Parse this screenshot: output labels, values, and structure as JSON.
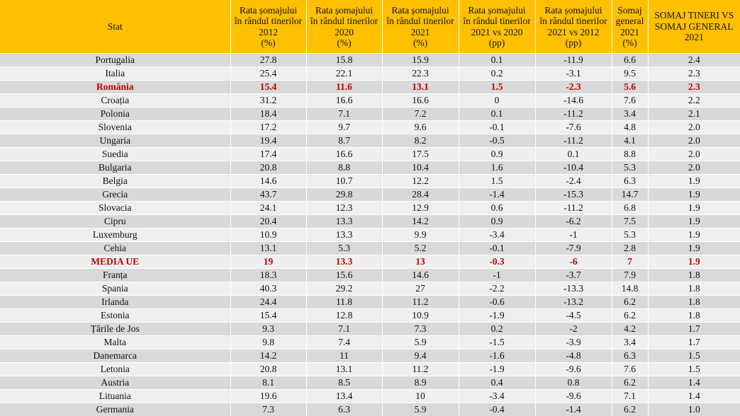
{
  "headers": [
    {
      "lines": [
        "Stat"
      ]
    },
    {
      "lines": [
        "Rata șomajului",
        "în rândul tinerilor",
        "2012",
        "(%)"
      ]
    },
    {
      "lines": [
        "Rata șomajului",
        "în rândul tinerilor",
        "2020",
        "(%)"
      ]
    },
    {
      "lines": [
        "Rata șomajului",
        "în rândul tinerilor",
        "2021",
        "(%)"
      ]
    },
    {
      "lines": [
        "Rata șomajului",
        "în rândul tinerilor",
        "2021 vs 2020",
        "(pp)"
      ]
    },
    {
      "lines": [
        "Rata șomajului",
        "în rândul tinerilor",
        "2021 vs 2012",
        "(pp)"
      ]
    },
    {
      "lines": [
        "Somaj",
        "general",
        "2021",
        "(%)"
      ]
    },
    {
      "lines": [
        "SOMAJ TINERI VS",
        "SOMAJ GENERAL",
        "2021"
      ]
    }
  ],
  "rows": [
    {
      "cells": [
        "Portugalia",
        "27.8",
        "15.8",
        "15.9",
        "0.1",
        "-11.9",
        "6.6",
        "2.4"
      ]
    },
    {
      "cells": [
        "Italia",
        "25.4",
        "22.1",
        "22.3",
        "0.2",
        "-3.1",
        "9.5",
        "2.3"
      ]
    },
    {
      "cells": [
        "România",
        "15.4",
        "11.6",
        "13.1",
        "1.5",
        "-2.3",
        "5.6",
        "2.3"
      ],
      "highlight": true
    },
    {
      "cells": [
        "Croația",
        "31.2",
        "16.6",
        "16.6",
        "0",
        "-14.6",
        "7.6",
        "2.2"
      ]
    },
    {
      "cells": [
        "Polonia",
        "18.4",
        "7.1",
        "7.2",
        "0.1",
        "-11.2",
        "3.4",
        "2.1"
      ]
    },
    {
      "cells": [
        "Slovenia",
        "17.2",
        "9.7",
        "9.6",
        "-0.1",
        "-7.6",
        "4.8",
        "2.0"
      ]
    },
    {
      "cells": [
        "Ungaria",
        "19.4",
        "8.7",
        "8.2",
        "-0.5",
        "-11.2",
        "4.1",
        "2.0"
      ]
    },
    {
      "cells": [
        "Suedia",
        "17.4",
        "16.6",
        "17.5",
        "0.9",
        "0.1",
        "8.8",
        "2.0"
      ]
    },
    {
      "cells": [
        "Bulgaria",
        "20.8",
        "8.8",
        "10.4",
        "1.6",
        "-10.4",
        "5.3",
        "2.0"
      ]
    },
    {
      "cells": [
        "Belgia",
        "14.6",
        "10.7",
        "12.2",
        "1.5",
        "-2.4",
        "6.3",
        "1.9"
      ]
    },
    {
      "cells": [
        "Grecia",
        "43.7",
        "29.8",
        "28.4",
        "-1.4",
        "-15.3",
        "14.7",
        "1.9"
      ]
    },
    {
      "cells": [
        "Slovacia",
        "24.1",
        "12.3",
        "12.9",
        "0.6",
        "-11.2",
        "6.8",
        "1.9"
      ]
    },
    {
      "cells": [
        "Cipru",
        "20.4",
        "13.3",
        "14.2",
        "0.9",
        "-6.2",
        "7.5",
        "1.9"
      ]
    },
    {
      "cells": [
        "Luxemburg",
        "10.9",
        "13.3",
        "9.9",
        "-3.4",
        "-1",
        "5.3",
        "1.9"
      ]
    },
    {
      "cells": [
        "Cehia",
        "13.1",
        "5.3",
        "5.2",
        "-0.1",
        "-7.9",
        "2.8",
        "1.9"
      ]
    },
    {
      "cells": [
        "MEDIA UE",
        "19",
        "13.3",
        "13",
        "-0.3",
        "-6",
        "7",
        "1.9"
      ],
      "highlight": true
    },
    {
      "cells": [
        "Franța",
        "18.3",
        "15.6",
        "14.6",
        "-1",
        "-3.7",
        "7.9",
        "1.8"
      ]
    },
    {
      "cells": [
        "Spania",
        "40.3",
        "29.2",
        "27",
        "-2.2",
        "-13.3",
        "14.8",
        "1.8"
      ]
    },
    {
      "cells": [
        "Irlanda",
        "24.4",
        "11.8",
        "11.2",
        "-0.6",
        "-13.2",
        "6.2",
        "1.8"
      ]
    },
    {
      "cells": [
        "Estonia",
        "15.4",
        "12.8",
        "10.9",
        "-1.9",
        "-4.5",
        "6.2",
        "1.8"
      ]
    },
    {
      "cells": [
        "Țările de Jos",
        "9.3",
        "7.1",
        "7.3",
        "0.2",
        "-2",
        "4.2",
        "1.7"
      ]
    },
    {
      "cells": [
        "Malta",
        "9.8",
        "7.4",
        "5.9",
        "-1.5",
        "-3.9",
        "3.4",
        "1.7"
      ]
    },
    {
      "cells": [
        "Danemarca",
        "14.2",
        "11",
        "9.4",
        "-1.6",
        "-4.8",
        "6.3",
        "1.5"
      ]
    },
    {
      "cells": [
        "Letonia",
        "20.8",
        "13.1",
        "11.2",
        "-1.9",
        "-9.6",
        "7.6",
        "1.5"
      ]
    },
    {
      "cells": [
        "Austria",
        "8.1",
        "8.5",
        "8.9",
        "0.4",
        "0.8",
        "6.2",
        "1.4"
      ]
    },
    {
      "cells": [
        "Lituania",
        "19.6",
        "13.4",
        "10",
        "-3.4",
        "-9.6",
        "7.1",
        "1.4"
      ]
    },
    {
      "cells": [
        "Germania",
        "7.3",
        "6.3",
        "5.9",
        "-0.4",
        "-1.4",
        "6.2",
        "1.0"
      ]
    }
  ],
  "colors": {
    "header_bg": "#ffc000",
    "row_dark": "#d9d9d9",
    "row_light": "#efefef",
    "highlight_text": "#c00000"
  }
}
